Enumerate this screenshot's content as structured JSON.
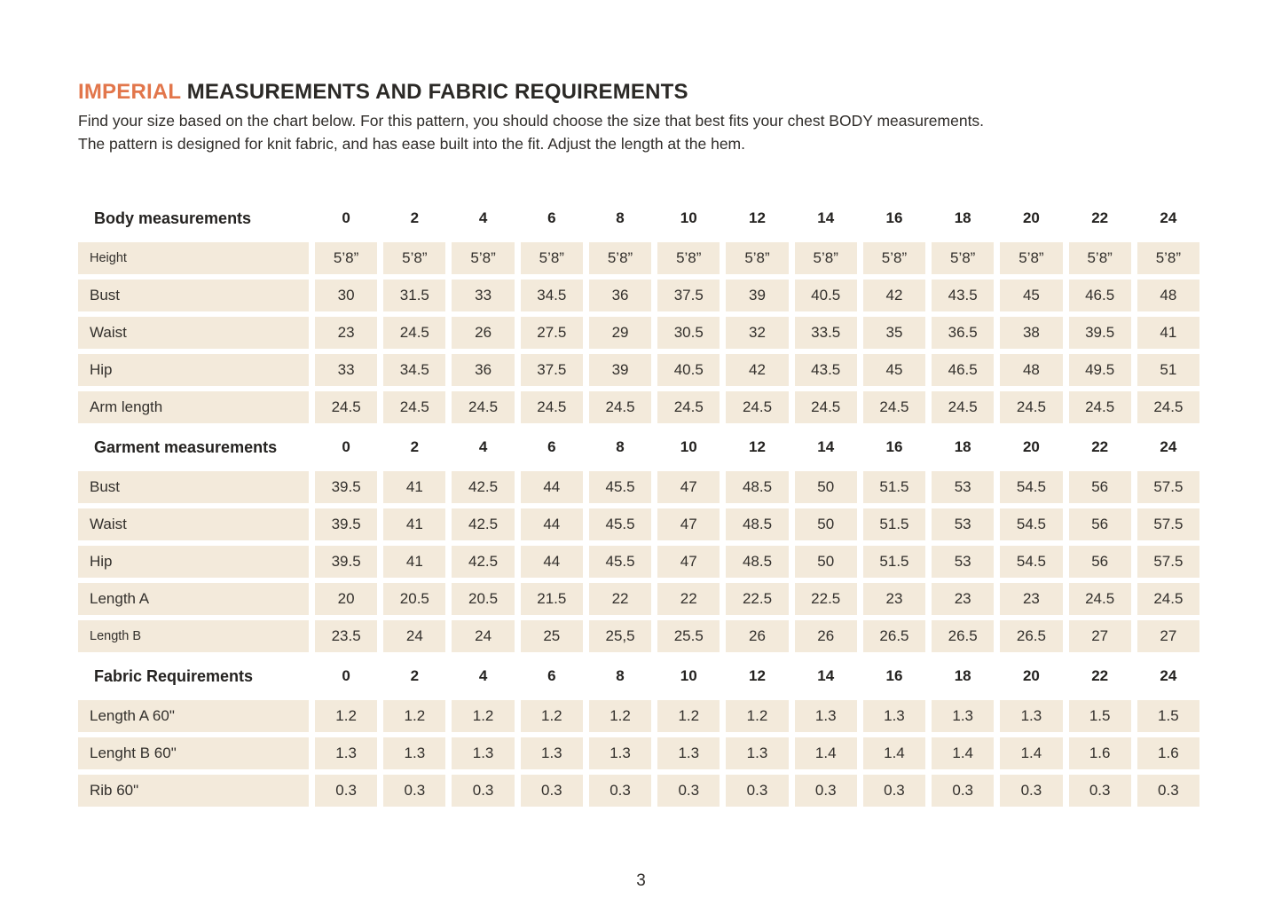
{
  "page": {
    "title_highlight": "IMPERIAL",
    "title_rest": " MEASUREMENTS AND FABRIC REQUIREMENTS",
    "intro_lines": [
      "Find your size based on the chart below. For this pattern, you should choose the size that best fits your chest BODY measurements.",
      "The pattern is designed for knit fabric, and has ease built into the fit. Adjust the length at the hem."
    ],
    "page_number": "3"
  },
  "colors": {
    "accent_orange": "#e2764b",
    "cell_beige": "#f3eadb",
    "text_dark": "#2f2c29"
  },
  "table": {
    "sizes": [
      "0",
      "2",
      "4",
      "6",
      "8",
      "10",
      "12",
      "14",
      "16",
      "18",
      "20",
      "22",
      "24"
    ],
    "sections": [
      {
        "header": "Body measurements",
        "rows": [
          {
            "label": "Height",
            "small": true,
            "values": [
              "5’8”",
              "5’8”",
              "5’8”",
              "5’8”",
              "5’8”",
              "5’8”",
              "5’8”",
              "5’8”",
              "5’8”",
              "5’8”",
              "5’8”",
              "5’8”",
              "5’8”"
            ]
          },
          {
            "label": "Bust",
            "values": [
              "30",
              "31.5",
              "33",
              "34.5",
              "36",
              "37.5",
              "39",
              "40.5",
              "42",
              "43.5",
              "45",
              "46.5",
              "48"
            ]
          },
          {
            "label": "Waist",
            "values": [
              "23",
              "24.5",
              "26",
              "27.5",
              "29",
              "30.5",
              "32",
              "33.5",
              "35",
              "36.5",
              "38",
              "39.5",
              "41"
            ]
          },
          {
            "label": "Hip",
            "values": [
              "33",
              "34.5",
              "36",
              "37.5",
              "39",
              "40.5",
              "42",
              "43.5",
              "45",
              "46.5",
              "48",
              "49.5",
              "51"
            ]
          },
          {
            "label": "Arm length",
            "values": [
              "24.5",
              "24.5",
              "24.5",
              "24.5",
              "24.5",
              "24.5",
              "24.5",
              "24.5",
              "24.5",
              "24.5",
              "24.5",
              "24.5",
              "24.5"
            ]
          }
        ]
      },
      {
        "header": "Garment measurements",
        "rows": [
          {
            "label": "Bust",
            "values": [
              "39.5",
              "41",
              "42.5",
              "44",
              "45.5",
              "47",
              "48.5",
              "50",
              "51.5",
              "53",
              "54.5",
              "56",
              "57.5"
            ]
          },
          {
            "label": "Waist",
            "values": [
              "39.5",
              "41",
              "42.5",
              "44",
              "45.5",
              "47",
              "48.5",
              "50",
              "51.5",
              "53",
              "54.5",
              "56",
              "57.5"
            ]
          },
          {
            "label": "Hip",
            "values": [
              "39.5",
              "41",
              "42.5",
              "44",
              "45.5",
              "47",
              "48.5",
              "50",
              "51.5",
              "53",
              "54.5",
              "56",
              "57.5"
            ]
          },
          {
            "label": "Length A",
            "values": [
              "20",
              "20.5",
              "20.5",
              "21.5",
              "22",
              "22",
              "22.5",
              "22.5",
              "23",
              "23",
              "23",
              "24.5",
              "24.5"
            ]
          },
          {
            "label": "Length B",
            "small": true,
            "values": [
              "23.5",
              "24",
              "24",
              "25",
              "25,5",
              "25.5",
              "26",
              "26",
              "26.5",
              "26.5",
              "26.5",
              "27",
              "27"
            ]
          }
        ]
      },
      {
        "header": "Fabric Requirements",
        "rows": [
          {
            "label": "Length A 60\"",
            "values": [
              "1.2",
              "1.2",
              "1.2",
              "1.2",
              "1.2",
              "1.2",
              "1.2",
              "1.3",
              "1.3",
              "1.3",
              "1.3",
              "1.5",
              "1.5"
            ]
          },
          {
            "label": "Lenght B 60\"",
            "values": [
              "1.3",
              "1.3",
              "1.3",
              "1.3",
              "1.3",
              "1.3",
              "1.3",
              "1.4",
              "1.4",
              "1.4",
              "1.4",
              "1.6",
              "1.6"
            ]
          },
          {
            "label": "Rib 60\"",
            "values": [
              "0.3",
              "0.3",
              "0.3",
              "0.3",
              "0.3",
              "0.3",
              "0.3",
              "0.3",
              "0.3",
              "0.3",
              "0.3",
              "0.3",
              "0.3"
            ]
          }
        ]
      }
    ]
  }
}
